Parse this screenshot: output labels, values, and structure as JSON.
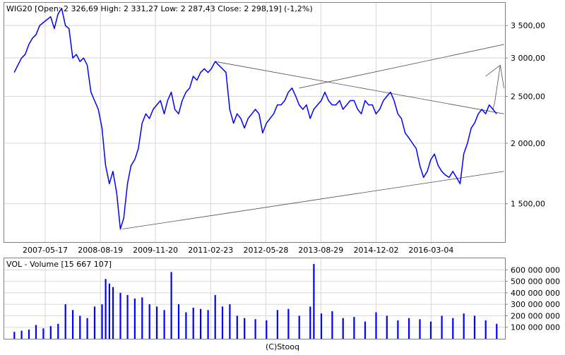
{
  "chart_data": [
    {
      "type": "line",
      "title": "WIG20 [Open: 2 326,69  High: 2 331,27  Low: 2 287,43  Close: 2 298,19] (-1,2%)",
      "y_scale": "log",
      "ylim": [
        1250,
        3900
      ],
      "grid": true,
      "line_color": "#0000ff",
      "x_tick_labels": [
        "2007-05-17",
        "2008-08-19",
        "2009-11-20",
        "2011-02-23",
        "2012-05-28",
        "2013-08-29",
        "2014-12-02",
        "2016-03-04"
      ],
      "y_tick_labels": [
        "1 500,00",
        "2 000,00",
        "2 500,00",
        "3 000,00",
        "3 500,00"
      ],
      "y_tick_values": [
        1500,
        2000,
        2500,
        3000,
        3500
      ],
      "series": [
        {
          "values": [
            [
              "2006-09-01",
              2800
            ],
            [
              "2006-10-01",
              2900
            ],
            [
              "2006-11-01",
              3000
            ],
            [
              "2006-12-01",
              3050
            ],
            [
              "2007-01-01",
              3200
            ],
            [
              "2007-02-01",
              3300
            ],
            [
              "2007-03-01",
              3350
            ],
            [
              "2007-04-01",
              3500
            ],
            [
              "2007-05-01",
              3550
            ],
            [
              "2007-06-01",
              3600
            ],
            [
              "2007-07-01",
              3650
            ],
            [
              "2007-08-01",
              3450
            ],
            [
              "2007-09-01",
              3700
            ],
            [
              "2007-10-01",
              3800
            ],
            [
              "2007-11-01",
              3500
            ],
            [
              "2007-12-01",
              3450
            ],
            [
              "2008-01-01",
              3000
            ],
            [
              "2008-02-01",
              3050
            ],
            [
              "2008-03-01",
              2950
            ],
            [
              "2008-04-01",
              3000
            ],
            [
              "2008-05-01",
              2900
            ],
            [
              "2008-06-01",
              2550
            ],
            [
              "2008-07-01",
              2450
            ],
            [
              "2008-08-01",
              2350
            ],
            [
              "2008-09-01",
              2150
            ],
            [
              "2008-10-01",
              1800
            ],
            [
              "2008-11-01",
              1650
            ],
            [
              "2008-12-01",
              1750
            ],
            [
              "2009-01-01",
              1580
            ],
            [
              "2009-02-01",
              1330
            ],
            [
              "2009-03-01",
              1400
            ],
            [
              "2009-04-01",
              1650
            ],
            [
              "2009-05-01",
              1800
            ],
            [
              "2009-06-01",
              1850
            ],
            [
              "2009-07-01",
              1950
            ],
            [
              "2009-08-01",
              2200
            ],
            [
              "2009-09-01",
              2300
            ],
            [
              "2009-10-01",
              2250
            ],
            [
              "2009-11-01",
              2350
            ],
            [
              "2009-12-01",
              2400
            ],
            [
              "2010-01-01",
              2450
            ],
            [
              "2010-02-01",
              2300
            ],
            [
              "2010-03-01",
              2450
            ],
            [
              "2010-04-01",
              2550
            ],
            [
              "2010-05-01",
              2350
            ],
            [
              "2010-06-01",
              2300
            ],
            [
              "2010-07-01",
              2450
            ],
            [
              "2010-08-01",
              2550
            ],
            [
              "2010-09-01",
              2600
            ],
            [
              "2010-10-01",
              2750
            ],
            [
              "2010-11-01",
              2700
            ],
            [
              "2010-12-01",
              2800
            ],
            [
              "2011-01-01",
              2850
            ],
            [
              "2011-02-01",
              2800
            ],
            [
              "2011-03-01",
              2850
            ],
            [
              "2011-04-01",
              2950
            ],
            [
              "2011-05-01",
              2900
            ],
            [
              "2011-06-01",
              2850
            ],
            [
              "2011-07-01",
              2800
            ],
            [
              "2011-08-01",
              2350
            ],
            [
              "2011-09-01",
              2200
            ],
            [
              "2011-10-01",
              2300
            ],
            [
              "2011-11-01",
              2250
            ],
            [
              "2011-12-01",
              2150
            ],
            [
              "2012-01-01",
              2250
            ],
            [
              "2012-02-01",
              2300
            ],
            [
              "2012-03-01",
              2350
            ],
            [
              "2012-04-01",
              2300
            ],
            [
              "2012-05-01",
              2100
            ],
            [
              "2012-06-01",
              2200
            ],
            [
              "2012-07-01",
              2250
            ],
            [
              "2012-08-01",
              2300
            ],
            [
              "2012-09-01",
              2400
            ],
            [
              "2012-10-01",
              2400
            ],
            [
              "2012-11-01",
              2450
            ],
            [
              "2012-12-01",
              2550
            ],
            [
              "2013-01-01",
              2600
            ],
            [
              "2013-02-01",
              2500
            ],
            [
              "2013-03-01",
              2400
            ],
            [
              "2013-04-01",
              2350
            ],
            [
              "2013-05-01",
              2400
            ],
            [
              "2013-06-01",
              2250
            ],
            [
              "2013-07-01",
              2350
            ],
            [
              "2013-08-01",
              2400
            ],
            [
              "2013-09-01",
              2450
            ],
            [
              "2013-10-01",
              2550
            ],
            [
              "2013-11-01",
              2450
            ],
            [
              "2013-12-01",
              2400
            ],
            [
              "2014-01-01",
              2400
            ],
            [
              "2014-02-01",
              2450
            ],
            [
              "2014-03-01",
              2350
            ],
            [
              "2014-04-01",
              2400
            ],
            [
              "2014-05-01",
              2450
            ],
            [
              "2014-06-01",
              2450
            ],
            [
              "2014-07-01",
              2350
            ],
            [
              "2014-08-01",
              2300
            ],
            [
              "2014-09-01",
              2450
            ],
            [
              "2014-10-01",
              2400
            ],
            [
              "2014-11-01",
              2400
            ],
            [
              "2014-12-01",
              2300
            ],
            [
              "2015-01-01",
              2350
            ],
            [
              "2015-02-01",
              2450
            ],
            [
              "2015-03-01",
              2500
            ],
            [
              "2015-04-01",
              2550
            ],
            [
              "2015-05-01",
              2450
            ],
            [
              "2015-06-01",
              2300
            ],
            [
              "2015-07-01",
              2250
            ],
            [
              "2015-08-01",
              2100
            ],
            [
              "2015-09-01",
              2050
            ],
            [
              "2015-10-01",
              2000
            ],
            [
              "2015-11-01",
              1950
            ],
            [
              "2015-12-01",
              1800
            ],
            [
              "2016-01-01",
              1700
            ],
            [
              "2016-02-01",
              1750
            ],
            [
              "2016-03-01",
              1850
            ],
            [
              "2016-04-01",
              1900
            ],
            [
              "2016-05-01",
              1800
            ],
            [
              "2016-06-01",
              1750
            ],
            [
              "2016-07-01",
              1720
            ],
            [
              "2016-08-01",
              1700
            ],
            [
              "2016-09-01",
              1750
            ],
            [
              "2016-10-01",
              1700
            ],
            [
              "2016-11-01",
              1650
            ],
            [
              "2016-12-01",
              1900
            ],
            [
              "2017-01-01",
              2000
            ],
            [
              "2017-02-01",
              2150
            ],
            [
              "2017-03-01",
              2200
            ],
            [
              "2017-04-01",
              2300
            ],
            [
              "2017-05-01",
              2350
            ],
            [
              "2017-06-01",
              2300
            ],
            [
              "2017-07-01",
              2400
            ],
            [
              "2017-08-01",
              2350
            ],
            [
              "2017-09-01",
              2300
            ]
          ]
        }
      ],
      "annotations": [
        {
          "kind": "trendline",
          "from": [
            "2009-02-18",
            1330
          ],
          "to": [
            "2017-11-01",
            1750
          ]
        },
        {
          "kind": "trendline",
          "from": [
            "2013-03-01",
            2600
          ],
          "to": [
            "2017-11-01",
            3200
          ]
        },
        {
          "kind": "trendline",
          "from": [
            "2011-04-01",
            2950
          ],
          "to": [
            "2017-11-01",
            2300
          ]
        },
        {
          "kind": "trendline",
          "from": [
            "2017-08-01",
            2350
          ],
          "to": [
            "2017-08-15",
            2420
          ]
        },
        {
          "kind": "trendline",
          "from": [
            "2017-08-15",
            2420
          ],
          "to": [
            "2017-10-01",
            2900
          ]
        },
        {
          "kind": "trendline",
          "from": [
            "2017-10-01",
            2900
          ],
          "to": [
            "2017-11-01",
            2600
          ]
        },
        {
          "kind": "trendline",
          "from": [
            "2017-06-01",
            2750
          ],
          "to": [
            "2017-10-01",
            2900
          ]
        }
      ]
    },
    {
      "type": "bar",
      "title": "VOL - Volume [15 667 107]",
      "ylim": [
        0,
        700000000
      ],
      "grid": true,
      "bar_color": "#0000ff",
      "y_tick_labels": [
        "100 000 000",
        "200 000 000",
        "300 000 000",
        "400 000 000",
        "500 000 000",
        "600 000 000"
      ],
      "y_tick_values": [
        100000000,
        200000000,
        300000000,
        400000000,
        500000000,
        600000000
      ],
      "values": [
        [
          "2006-09-01",
          60000000
        ],
        [
          "2006-11-01",
          70000000
        ],
        [
          "2007-01-01",
          80000000
        ],
        [
          "2007-03-01",
          120000000
        ],
        [
          "2007-05-01",
          90000000
        ],
        [
          "2007-07-01",
          110000000
        ],
        [
          "2007-09-01",
          130000000
        ],
        [
          "2007-11-01",
          300000000
        ],
        [
          "2008-01-01",
          250000000
        ],
        [
          "2008-03-01",
          200000000
        ],
        [
          "2008-05-01",
          180000000
        ],
        [
          "2008-07-01",
          280000000
        ],
        [
          "2008-09-01",
          300000000
        ],
        [
          "2008-10-01",
          520000000
        ],
        [
          "2008-11-01",
          480000000
        ],
        [
          "2008-12-01",
          450000000
        ],
        [
          "2009-02-01",
          400000000
        ],
        [
          "2009-04-01",
          380000000
        ],
        [
          "2009-06-01",
          350000000
        ],
        [
          "2009-08-01",
          360000000
        ],
        [
          "2009-10-01",
          300000000
        ],
        [
          "2009-12-01",
          280000000
        ],
        [
          "2010-02-01",
          250000000
        ],
        [
          "2010-04-01",
          580000000
        ],
        [
          "2010-06-01",
          300000000
        ],
        [
          "2010-08-01",
          230000000
        ],
        [
          "2010-10-01",
          270000000
        ],
        [
          "2010-12-01",
          260000000
        ],
        [
          "2011-02-01",
          250000000
        ],
        [
          "2011-04-01",
          380000000
        ],
        [
          "2011-06-01",
          280000000
        ],
        [
          "2011-08-01",
          300000000
        ],
        [
          "2011-10-01",
          200000000
        ],
        [
          "2011-12-01",
          180000000
        ],
        [
          "2012-03-01",
          170000000
        ],
        [
          "2012-06-01",
          160000000
        ],
        [
          "2012-09-01",
          250000000
        ],
        [
          "2012-12-01",
          260000000
        ],
        [
          "2013-03-01",
          200000000
        ],
        [
          "2013-06-01",
          280000000
        ],
        [
          "2013-07-01",
          650000000
        ],
        [
          "2013-09-01",
          220000000
        ],
        [
          "2013-12-01",
          240000000
        ],
        [
          "2014-03-01",
          180000000
        ],
        [
          "2014-06-01",
          190000000
        ],
        [
          "2014-09-01",
          150000000
        ],
        [
          "2014-12-01",
          230000000
        ],
        [
          "2015-03-01",
          200000000
        ],
        [
          "2015-06-01",
          160000000
        ],
        [
          "2015-09-01",
          180000000
        ],
        [
          "2015-12-01",
          170000000
        ],
        [
          "2016-03-01",
          150000000
        ],
        [
          "2016-06-01",
          200000000
        ],
        [
          "2016-09-01",
          180000000
        ],
        [
          "2016-12-01",
          220000000
        ],
        [
          "2017-03-01",
          200000000
        ],
        [
          "2017-06-01",
          160000000
        ],
        [
          "2017-09-01",
          130000000
        ]
      ]
    }
  ],
  "footer": {
    "credit": "(C)Stooq"
  }
}
